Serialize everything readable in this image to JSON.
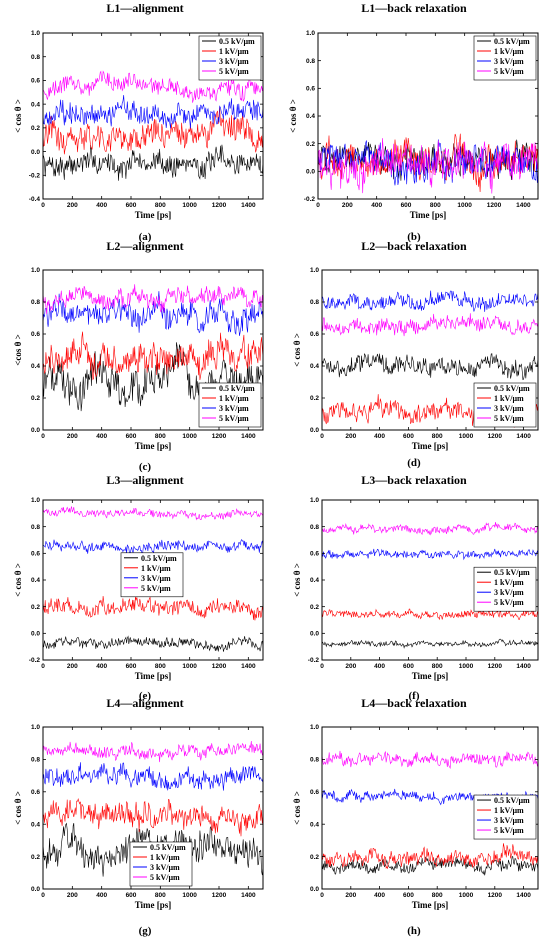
{
  "colors": {
    "0.5": "#000000",
    "1": "#ff0000",
    "3": "#0000ff",
    "5": "#ff00ff"
  },
  "chart_data": [
    {
      "id": "a",
      "type": "line",
      "title": "L1—alignment",
      "panel_label": "(a)",
      "xlabel": "Time [ps]",
      "ylabel": "< cos θ >",
      "xlim": [
        0,
        1500
      ],
      "ylim": [
        -0.4,
        1.0
      ],
      "xticks": [
        0,
        200,
        400,
        600,
        800,
        1000,
        1200,
        1400
      ],
      "yticks": [
        -0.4,
        -0.2,
        0.0,
        0.2,
        0.4,
        0.6,
        0.8,
        1.0
      ],
      "legend_position": "top-right",
      "series": [
        {
          "name": "0.5 kV/μm",
          "color": "#000000",
          "mean": -0.1,
          "amp": 0.1
        },
        {
          "name": "1 kV/μm",
          "color": "#ff0000",
          "mean": 0.12,
          "amp": 0.12
        },
        {
          "name": "3 kV/μm",
          "color": "#0000ff",
          "mean": 0.32,
          "amp": 0.1
        },
        {
          "name": "5 kV/μm",
          "color": "#ff00ff",
          "mean": 0.55,
          "amp": 0.08
        }
      ]
    },
    {
      "id": "b",
      "type": "line",
      "title": "L1—back relaxation",
      "panel_label": "(b)",
      "xlabel": "Time [ps]",
      "ylabel": "< cos θ >",
      "xlim": [
        0,
        1500
      ],
      "ylim": [
        -0.2,
        1.0
      ],
      "xticks": [
        0,
        200,
        400,
        600,
        800,
        1000,
        1200,
        1400
      ],
      "yticks": [
        -0.2,
        0.0,
        0.2,
        0.4,
        0.6,
        0.8,
        1.0
      ],
      "legend_position": "top-right",
      "series": [
        {
          "name": "0.5 kV/μm",
          "color": "#000000",
          "mean": 0.1,
          "amp": 0.12
        },
        {
          "name": "1 kV/μm",
          "color": "#ff0000",
          "mean": 0.08,
          "amp": 0.12
        },
        {
          "name": "3 kV/μm",
          "color": "#0000ff",
          "mean": 0.06,
          "amp": 0.12
        },
        {
          "name": "5 kV/μm",
          "color": "#ff00ff",
          "mean": 0.04,
          "amp": 0.14
        }
      ]
    },
    {
      "id": "c",
      "type": "line",
      "title": "L2—alignment",
      "panel_label": "(c)",
      "xlabel": "Time [ps]",
      "ylabel": "<cos θ >",
      "xlim": [
        0,
        1500
      ],
      "ylim": [
        0.0,
        1.0
      ],
      "xticks": [
        0,
        200,
        400,
        600,
        800,
        1000,
        1200,
        1400
      ],
      "yticks": [
        0.0,
        0.2,
        0.4,
        0.6,
        0.8,
        1.0
      ],
      "legend_position": "bottom-right",
      "series": [
        {
          "name": "0.5 kV/μm",
          "color": "#000000",
          "mean": 0.3,
          "amp": 0.12
        },
        {
          "name": "1 kV/μm",
          "color": "#ff0000",
          "mean": 0.45,
          "amp": 0.1
        },
        {
          "name": "3 kV/μm",
          "color": "#0000ff",
          "mean": 0.72,
          "amp": 0.08
        },
        {
          "name": "5 kV/μm",
          "color": "#ff00ff",
          "mean": 0.82,
          "amp": 0.06
        }
      ]
    },
    {
      "id": "d",
      "type": "line",
      "title": "L2—back relaxation",
      "panel_label": "(d)",
      "xlabel": "Time [ps]",
      "ylabel": "< cos θ >",
      "xlim": [
        0,
        1500
      ],
      "ylim": [
        0.0,
        1.0
      ],
      "xticks": [
        0,
        200,
        400,
        600,
        800,
        1000,
        1200,
        1400
      ],
      "yticks": [
        0.0,
        0.2,
        0.4,
        0.6,
        0.8,
        1.0
      ],
      "legend_position": "bottom-right",
      "series": [
        {
          "name": "0.5 kV/μm",
          "color": "#000000",
          "mean": 0.4,
          "amp": 0.06
        },
        {
          "name": "1 kV/μm",
          "color": "#ff0000",
          "mean": 0.12,
          "amp": 0.06
        },
        {
          "name": "3 kV/μm",
          "color": "#0000ff",
          "mean": 0.8,
          "amp": 0.05
        },
        {
          "name": "5 kV/μm",
          "color": "#ff00ff",
          "mean": 0.65,
          "amp": 0.05
        }
      ]
    },
    {
      "id": "e",
      "type": "line",
      "title": "L3—alignment",
      "panel_label": "(e)",
      "xlabel": "Time [ps]",
      "ylabel": "< cos θ >",
      "xlim": [
        0,
        1500
      ],
      "ylim": [
        -0.2,
        1.0
      ],
      "xticks": [
        0,
        200,
        400,
        600,
        800,
        1000,
        1200,
        1400
      ],
      "yticks": [
        -0.2,
        0.0,
        0.2,
        0.4,
        0.6,
        0.8,
        1.0
      ],
      "legend_position": "center",
      "series": [
        {
          "name": "0.5 kV/μm",
          "color": "#000000",
          "mean": -0.08,
          "amp": 0.04
        },
        {
          "name": "1 kV/μm",
          "color": "#ff0000",
          "mean": 0.2,
          "amp": 0.06
        },
        {
          "name": "3 kV/μm",
          "color": "#0000ff",
          "mean": 0.65,
          "amp": 0.04
        },
        {
          "name": "5 kV/μm",
          "color": "#ff00ff",
          "mean": 0.9,
          "amp": 0.03
        }
      ]
    },
    {
      "id": "f",
      "type": "line",
      "title": "L3—back relaxation",
      "panel_label": "(f)",
      "xlabel": "Time [ps]",
      "ylabel": "< cos θ >",
      "xlim": [
        0,
        1500
      ],
      "ylim": [
        -0.2,
        1.0
      ],
      "xticks": [
        0,
        200,
        400,
        600,
        800,
        1000,
        1200,
        1400
      ],
      "yticks": [
        -0.2,
        0.0,
        0.2,
        0.4,
        0.6,
        0.8,
        1.0
      ],
      "legend_position": "right",
      "series": [
        {
          "name": "0.5 kV/μm",
          "color": "#000000",
          "mean": -0.08,
          "amp": 0.02
        },
        {
          "name": "1 kV/μm",
          "color": "#ff0000",
          "mean": 0.14,
          "amp": 0.03
        },
        {
          "name": "3 kV/μm",
          "color": "#0000ff",
          "mean": 0.6,
          "amp": 0.03
        },
        {
          "name": "5 kV/μm",
          "color": "#ff00ff",
          "mean": 0.79,
          "amp": 0.03
        }
      ]
    },
    {
      "id": "g",
      "type": "line",
      "title": "L4—alignment",
      "panel_label": "(g)",
      "xlabel": "Time [ps]",
      "ylabel": "< cos θ >",
      "xlim": [
        0,
        1500
      ],
      "ylim": [
        0.0,
        1.0
      ],
      "xticks": [
        0,
        200,
        400,
        600,
        800,
        1000,
        1200,
        1400
      ],
      "yticks": [
        0.0,
        0.2,
        0.4,
        0.6,
        0.8,
        1.0
      ],
      "legend_position": "bottom-center",
      "series": [
        {
          "name": "0.5 kV/μm",
          "color": "#000000",
          "mean": 0.25,
          "amp": 0.1
        },
        {
          "name": "1 kV/μm",
          "color": "#ff0000",
          "mean": 0.45,
          "amp": 0.08
        },
        {
          "name": "3 kV/μm",
          "color": "#0000ff",
          "mean": 0.68,
          "amp": 0.06
        },
        {
          "name": "5 kV/μm",
          "color": "#ff00ff",
          "mean": 0.85,
          "amp": 0.04
        }
      ]
    },
    {
      "id": "h",
      "type": "line",
      "title": "L4—back relaxation",
      "panel_label": "(h)",
      "xlabel": "Time [ps]",
      "ylabel": "< cos θ >",
      "xlim": [
        0,
        1500
      ],
      "ylim": [
        0.0,
        1.0
      ],
      "xticks": [
        0,
        200,
        400,
        600,
        800,
        1000,
        1200,
        1400
      ],
      "yticks": [
        0.0,
        0.2,
        0.4,
        0.6,
        0.8,
        1.0
      ],
      "legend_position": "right",
      "series": [
        {
          "name": "0.5 kV/μm",
          "color": "#000000",
          "mean": 0.15,
          "amp": 0.04
        },
        {
          "name": "1 kV/μm",
          "color": "#ff0000",
          "mean": 0.2,
          "amp": 0.05
        },
        {
          "name": "3 kV/μm",
          "color": "#0000ff",
          "mean": 0.57,
          "amp": 0.03
        },
        {
          "name": "5 kV/μm",
          "color": "#ff00ff",
          "mean": 0.8,
          "amp": 0.04
        }
      ]
    }
  ]
}
